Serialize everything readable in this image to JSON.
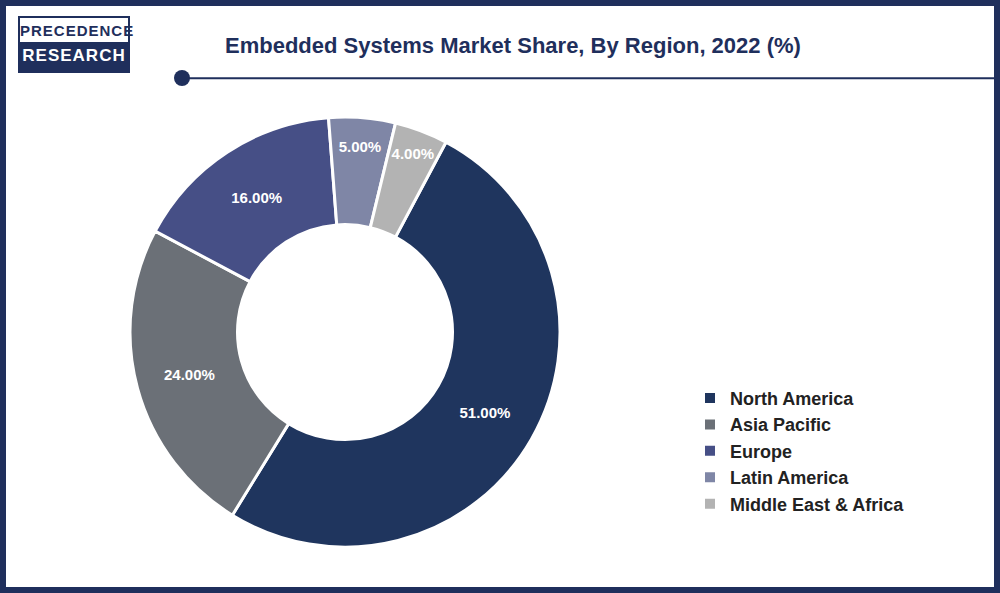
{
  "chart_data": {
    "type": "pie",
    "title": "Embedded Systems Market Share, By Region, 2022 (%)",
    "categories": [
      "North America",
      "Asia Pacific",
      "Europe",
      "Latin America",
      "Middle East & Africa"
    ],
    "values": [
      51,
      24,
      16,
      5,
      4
    ],
    "value_labels": [
      "51.00%",
      "24.00%",
      "16.00%",
      "5.00%",
      "4.00%"
    ],
    "colors": [
      "#1f355e",
      "#6b7077",
      "#464f86",
      "#7f86a6",
      "#b3b3b3"
    ],
    "data_labels": true,
    "legend": "lower right"
  },
  "branding": {
    "lines": [
      "PRECEDENCE",
      "RESEARCH"
    ]
  }
}
